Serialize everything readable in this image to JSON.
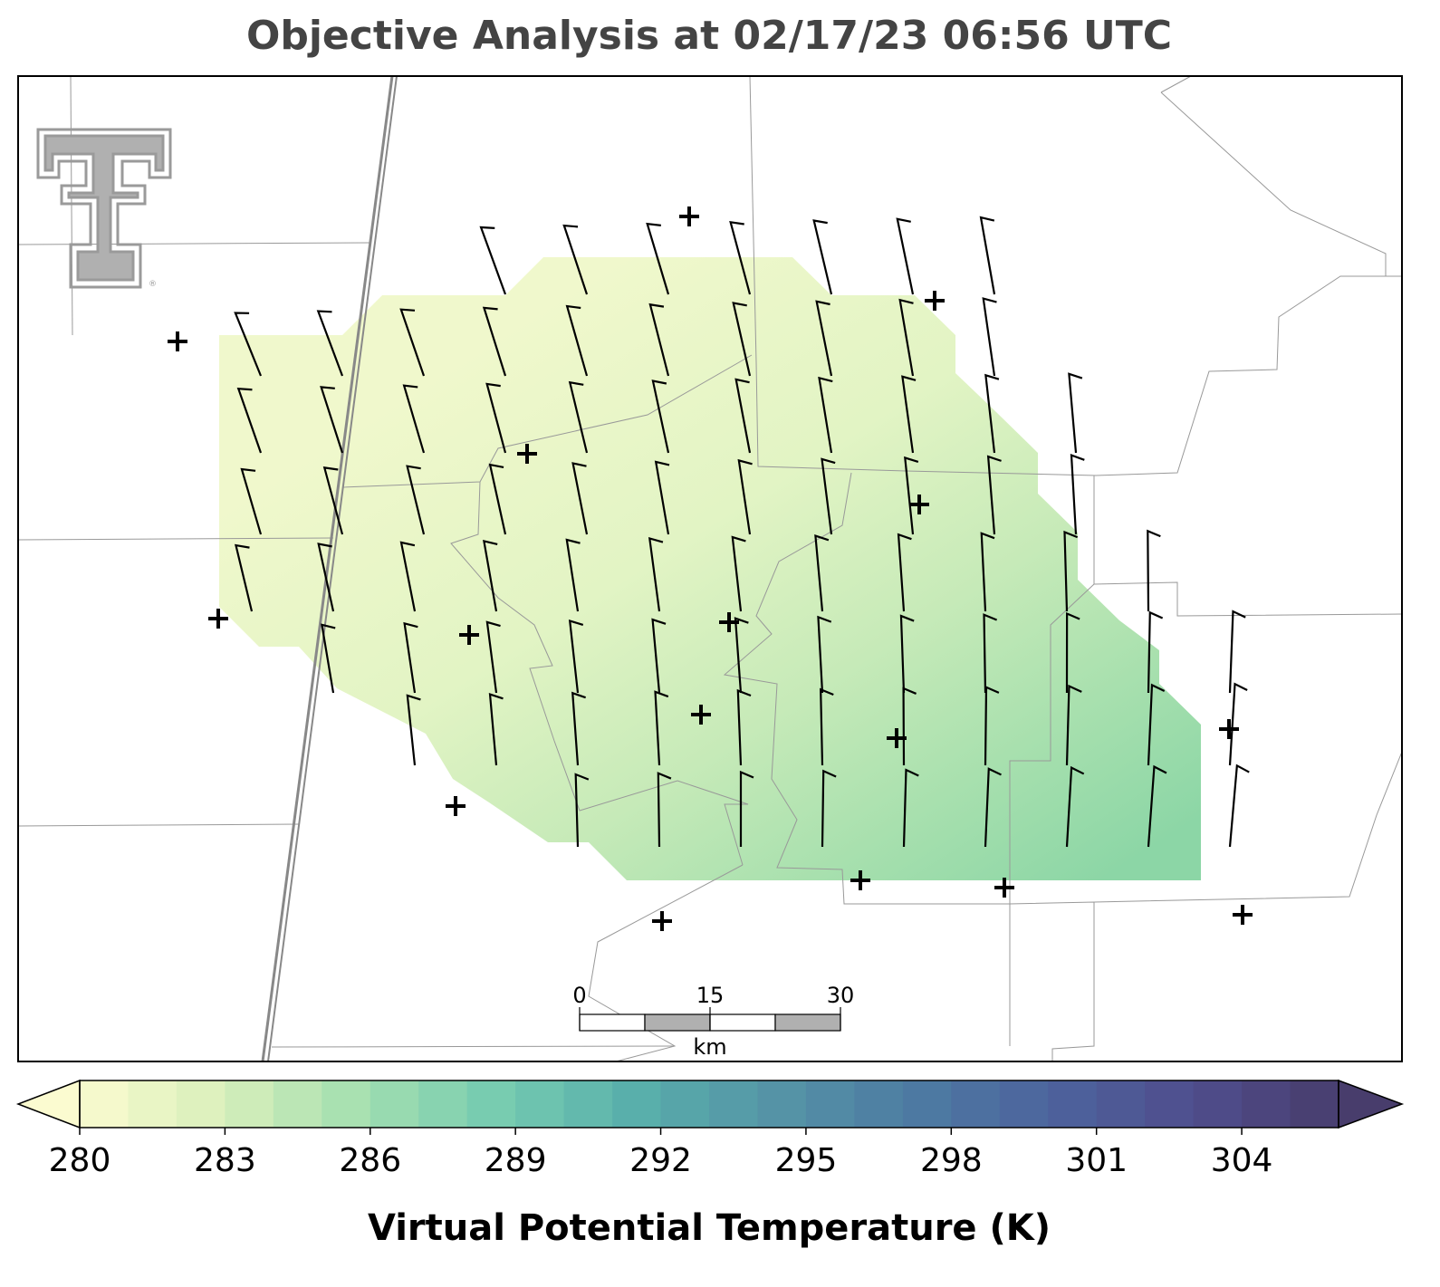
{
  "title": "Objective Analysis at 02/17/23 06:56 UTC",
  "colorbar": {
    "label": "Virtual Potential Temperature (K)",
    "lim": [
      280,
      306
    ],
    "ticks": [
      280,
      283,
      286,
      289,
      292,
      295,
      298,
      301,
      304
    ],
    "extend": "both",
    "colors": [
      "#fbfbd0",
      "#d9efbb",
      "#a4dfb0",
      "#75cbb0",
      "#58aeab",
      "#5593a6",
      "#4d7aa2",
      "#4d629d",
      "#4f4d8c",
      "#483d6c"
    ]
  },
  "scale_bar": {
    "ticks": [
      0,
      15,
      30
    ],
    "unit": "km"
  }
}
